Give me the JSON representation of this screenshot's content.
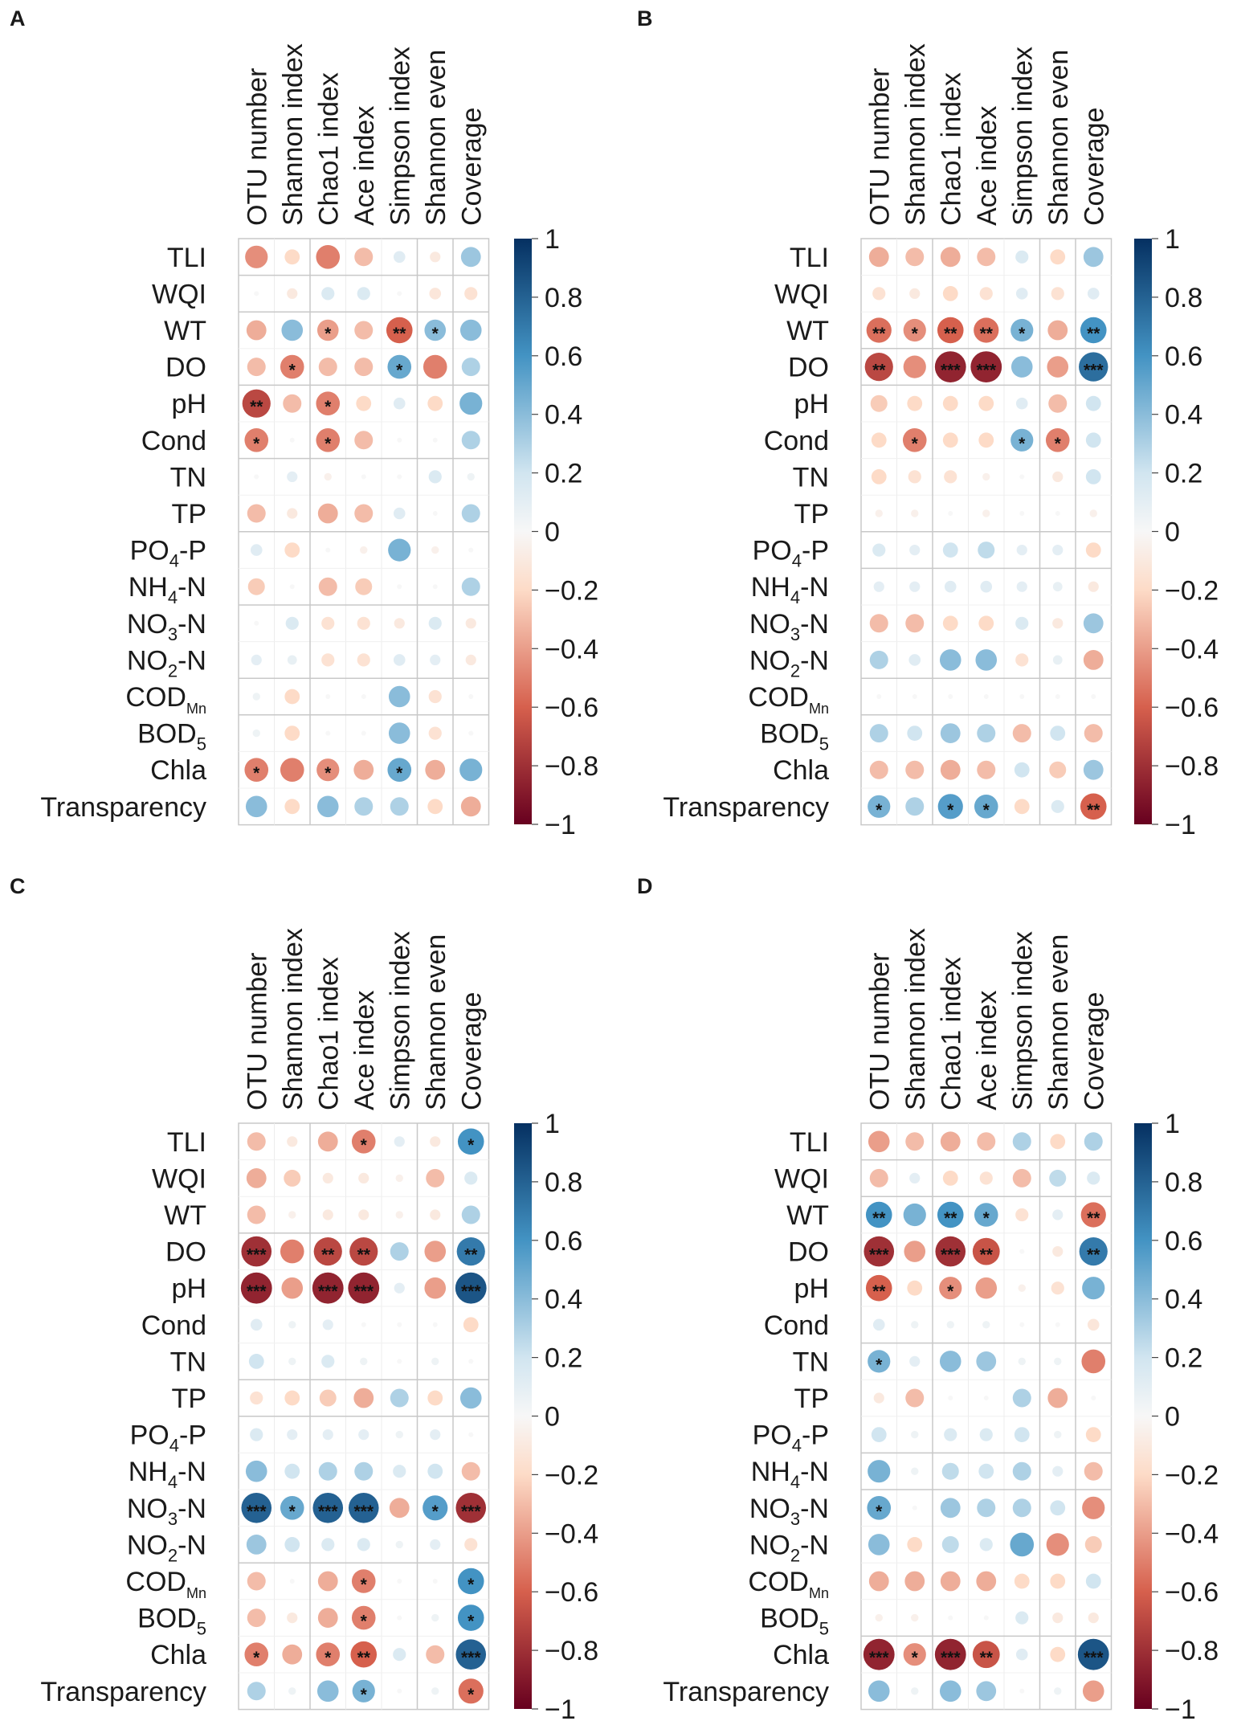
{
  "figure": {
    "columns": [
      "OTU number",
      "Shannon index",
      "Chao1 index",
      "Ace index",
      "Simpson index",
      "Shannon even",
      "Coverage"
    ],
    "rows": [
      "TLI",
      "WQI",
      "WT",
      "DO",
      "pH",
      "Cond",
      "TN",
      "TP",
      "PO4-P",
      "NH4-N",
      "NO3-N",
      "NO2-N",
      "CODMn",
      "BOD5",
      "Chla",
      "Transparency"
    ],
    "row_labels": [
      {
        "main": "TLI"
      },
      {
        "main": "WQI"
      },
      {
        "main": "WT"
      },
      {
        "main": "DO"
      },
      {
        "main": "pH"
      },
      {
        "main": "Cond"
      },
      {
        "main": "TN"
      },
      {
        "main": "TP"
      },
      {
        "main": "PO",
        "sub": "4",
        "rest": "-P"
      },
      {
        "main": "NH",
        "sub": "4",
        "rest": "-N"
      },
      {
        "main": "NO",
        "sub": "3",
        "rest": "-N"
      },
      {
        "main": "NO",
        "sub": "2",
        "rest": "-N"
      },
      {
        "main": "COD",
        "sub": "Mn",
        "rest": ""
      },
      {
        "main": "BOD",
        "sub": "5",
        "rest": ""
      },
      {
        "main": "Chla"
      },
      {
        "main": "Transparency"
      }
    ],
    "colorbar_ticks": [
      "1",
      "0.8",
      "0.6",
      "0.4",
      "0.2",
      "0",
      "−0.2",
      "−0.4",
      "−0.6",
      "−0.8",
      "−1"
    ],
    "colors": {
      "negative_end": "#67001f",
      "neg_mid": "#d6604d",
      "neg_light": "#fddbc7",
      "zero": "#f7f7f7",
      "pos_light": "#d1e5f0",
      "pos_mid": "#4393c3",
      "positive_end": "#053061",
      "grid": "#c8c8c8"
    }
  },
  "chart_data": [
    {
      "panel": "A",
      "type": "heatmap",
      "style": "correlation circles",
      "values": [
        [
          -0.45,
          -0.2,
          -0.5,
          -0.3,
          0.12,
          -0.1,
          0.35
        ],
        [
          0.0,
          -0.1,
          0.15,
          0.15,
          0.0,
          -0.12,
          -0.15
        ],
        [
          -0.35,
          0.4,
          -0.4,
          -0.3,
          -0.6,
          0.4,
          0.4
        ],
        [
          -0.3,
          -0.5,
          -0.3,
          -0.3,
          0.5,
          -0.5,
          0.3
        ],
        [
          -0.7,
          -0.3,
          -0.5,
          -0.2,
          0.12,
          -0.2,
          0.45
        ],
        [
          -0.5,
          0.0,
          -0.5,
          -0.3,
          0.0,
          0.0,
          0.3
        ],
        [
          0.0,
          0.1,
          -0.05,
          0.0,
          0.0,
          0.15,
          0.05
        ],
        [
          -0.3,
          -0.1,
          -0.35,
          -0.3,
          0.12,
          0.0,
          0.3
        ],
        [
          0.12,
          -0.2,
          0.0,
          -0.05,
          0.45,
          -0.05,
          0.0
        ],
        [
          -0.25,
          0.0,
          -0.3,
          -0.25,
          0.0,
          0.0,
          0.3
        ],
        [
          0.0,
          0.15,
          -0.15,
          -0.15,
          -0.1,
          0.15,
          -0.1
        ],
        [
          0.1,
          0.08,
          -0.15,
          -0.15,
          0.12,
          0.1,
          -0.1
        ],
        [
          0.05,
          -0.2,
          0.0,
          0.0,
          0.4,
          -0.15,
          0.0
        ],
        [
          0.05,
          -0.2,
          0.0,
          0.0,
          0.4,
          -0.15,
          0.0
        ],
        [
          -0.5,
          -0.5,
          -0.45,
          -0.35,
          0.5,
          -0.35,
          0.45
        ],
        [
          0.4,
          -0.2,
          0.4,
          0.3,
          0.3,
          -0.2,
          -0.35
        ]
      ],
      "stars": [
        [
          "",
          "",
          "",
          "",
          "",
          "",
          ""
        ],
        [
          "",
          "",
          "",
          "",
          "",
          "",
          ""
        ],
        [
          "",
          "",
          "*",
          "",
          "**",
          "*",
          ""
        ],
        [
          "",
          "*",
          "",
          "",
          "*",
          "",
          ""
        ],
        [
          "**",
          "",
          "*",
          "",
          "",
          "",
          ""
        ],
        [
          "*",
          "",
          "*",
          "",
          "",
          "",
          ""
        ],
        [
          "",
          "",
          "",
          "",
          "",
          "",
          ""
        ],
        [
          "",
          "",
          "",
          "",
          "",
          "",
          ""
        ],
        [
          "",
          "",
          "",
          "",
          "",
          "",
          ""
        ],
        [
          "",
          "",
          "",
          "",
          "",
          "",
          ""
        ],
        [
          "",
          "",
          "",
          "",
          "",
          "",
          ""
        ],
        [
          "",
          "",
          "",
          "",
          "",
          "",
          ""
        ],
        [
          "",
          "",
          "",
          "",
          "",
          "",
          ""
        ],
        [
          "",
          "",
          "",
          "",
          "",
          "",
          ""
        ],
        [
          "*",
          "",
          "*",
          "",
          "*",
          "",
          ""
        ],
        [
          "",
          "",
          "",
          "",
          "",
          "",
          ""
        ]
      ],
      "clusters": [
        1,
        2,
        4,
        6,
        8,
        10,
        12,
        13
      ],
      "col_clusters": [
        2,
        5,
        6
      ],
      "range": [
        -1,
        1
      ]
    },
    {
      "panel": "B",
      "type": "heatmap",
      "style": "correlation circles",
      "values": [
        [
          -0.35,
          -0.3,
          -0.35,
          -0.3,
          0.15,
          -0.2,
          0.35
        ],
        [
          -0.15,
          -0.1,
          -0.2,
          -0.15,
          0.12,
          -0.15,
          0.12
        ],
        [
          -0.55,
          -0.45,
          -0.6,
          -0.55,
          0.45,
          -0.35,
          0.6
        ],
        [
          -0.7,
          -0.45,
          -0.85,
          -0.85,
          0.4,
          -0.4,
          0.75
        ],
        [
          -0.25,
          -0.2,
          -0.2,
          -0.2,
          0.12,
          -0.3,
          0.2
        ],
        [
          -0.2,
          -0.5,
          -0.2,
          -0.2,
          0.45,
          -0.5,
          0.2
        ],
        [
          -0.2,
          -0.15,
          -0.15,
          -0.05,
          0.0,
          -0.1,
          0.2
        ],
        [
          -0.05,
          -0.05,
          0.0,
          -0.05,
          0.0,
          0.0,
          -0.05
        ],
        [
          0.15,
          0.1,
          0.2,
          0.25,
          0.1,
          0.1,
          -0.2
        ],
        [
          0.1,
          0.1,
          0.12,
          0.12,
          0.1,
          0.08,
          -0.1
        ],
        [
          -0.3,
          -0.3,
          -0.2,
          -0.2,
          0.15,
          -0.1,
          0.35
        ],
        [
          0.3,
          0.12,
          0.4,
          0.4,
          -0.15,
          0.08,
          -0.35
        ],
        [
          0.0,
          0.0,
          0.0,
          0.0,
          0.0,
          0.0,
          0.0
        ],
        [
          0.3,
          0.2,
          0.35,
          0.3,
          -0.3,
          0.2,
          -0.3
        ],
        [
          -0.3,
          -0.3,
          -0.35,
          -0.3,
          0.2,
          -0.25,
          0.35
        ],
        [
          0.45,
          0.3,
          0.55,
          0.5,
          -0.2,
          0.15,
          -0.6
        ]
      ],
      "stars": [
        [
          "",
          "",
          "",
          "",
          "",
          "",
          ""
        ],
        [
          "",
          "",
          "",
          "",
          "",
          "",
          ""
        ],
        [
          "**",
          "*",
          "**",
          "**",
          "*",
          "",
          "**"
        ],
        [
          "**",
          "",
          "***",
          "***",
          "",
          "",
          "***"
        ],
        [
          "",
          "",
          "",
          "",
          "",
          "",
          ""
        ],
        [
          "",
          "*",
          "",
          "",
          "*",
          "*",
          ""
        ],
        [
          "",
          "",
          "",
          "",
          "",
          "",
          ""
        ],
        [
          "",
          "",
          "",
          "",
          "",
          "",
          ""
        ],
        [
          "",
          "",
          "",
          "",
          "",
          "",
          ""
        ],
        [
          "",
          "",
          "",
          "",
          "",
          "",
          ""
        ],
        [
          "",
          "",
          "",
          "",
          "",
          "",
          ""
        ],
        [
          "",
          "",
          "",
          "",
          "",
          "",
          ""
        ],
        [
          "",
          "",
          "",
          "",
          "",
          "",
          ""
        ],
        [
          "",
          "",
          "",
          "",
          "",
          "",
          ""
        ],
        [
          "",
          "",
          "",
          "",
          "",
          "",
          ""
        ],
        [
          "*",
          "",
          "*",
          "*",
          "",
          "",
          "**"
        ]
      ],
      "clusters": [
        3,
        4,
        8,
        9,
        12,
        13
      ],
      "col_clusters": [
        2,
        5,
        6
      ],
      "range": [
        -1,
        1
      ]
    },
    {
      "panel": "C",
      "type": "heatmap",
      "style": "correlation circles",
      "values": [
        [
          -0.3,
          -0.1,
          -0.35,
          -0.5,
          0.1,
          -0.1,
          0.6
        ],
        [
          -0.35,
          -0.25,
          -0.1,
          -0.1,
          -0.05,
          -0.3,
          0.15
        ],
        [
          -0.3,
          -0.05,
          -0.1,
          -0.1,
          -0.05,
          -0.1,
          0.3
        ],
        [
          -0.8,
          -0.5,
          -0.7,
          -0.7,
          0.3,
          -0.4,
          0.7
        ],
        [
          -0.85,
          -0.4,
          -0.85,
          -0.85,
          0.1,
          -0.4,
          0.85
        ],
        [
          0.12,
          0.05,
          0.1,
          0.0,
          0.0,
          0.0,
          -0.2
        ],
        [
          0.2,
          0.05,
          0.15,
          0.05,
          0.0,
          0.05,
          0.0
        ],
        [
          -0.15,
          -0.2,
          -0.25,
          -0.35,
          0.3,
          -0.2,
          0.4
        ],
        [
          0.15,
          0.1,
          0.1,
          0.1,
          0.05,
          0.1,
          0.0
        ],
        [
          0.4,
          0.2,
          0.3,
          0.3,
          0.15,
          0.2,
          -0.3
        ],
        [
          0.8,
          0.5,
          0.8,
          0.8,
          -0.35,
          0.55,
          -0.8
        ],
        [
          0.35,
          0.2,
          0.15,
          0.15,
          0.05,
          0.1,
          -0.15
        ],
        [
          -0.3,
          0.0,
          -0.35,
          -0.5,
          0.0,
          0.0,
          0.6
        ],
        [
          -0.3,
          -0.1,
          -0.35,
          -0.5,
          0.0,
          0.05,
          0.6
        ],
        [
          -0.5,
          -0.35,
          -0.5,
          -0.6,
          0.15,
          -0.3,
          0.8
        ],
        [
          0.3,
          0.05,
          0.4,
          0.45,
          0.0,
          0.05,
          -0.55
        ]
      ],
      "stars": [
        [
          "",
          "",
          "",
          "*",
          "",
          "",
          "*"
        ],
        [
          "",
          "",
          "",
          "",
          "",
          "",
          ""
        ],
        [
          "",
          "",
          "",
          "",
          "",
          "",
          ""
        ],
        [
          "***",
          "",
          "**",
          "**",
          "",
          "",
          "**"
        ],
        [
          "***",
          "",
          "***",
          "***",
          "",
          "",
          "***"
        ],
        [
          "",
          "",
          "",
          "",
          "",
          "",
          ""
        ],
        [
          "",
          "",
          "",
          "",
          "",
          "",
          ""
        ],
        [
          "",
          "",
          "",
          "",
          "",
          "",
          ""
        ],
        [
          "",
          "",
          "",
          "",
          "",
          "",
          ""
        ],
        [
          "",
          "",
          "",
          "",
          "",
          "",
          ""
        ],
        [
          "***",
          "*",
          "***",
          "***",
          "",
          "*",
          "***"
        ],
        [
          "",
          "",
          "",
          "",
          "",
          "",
          ""
        ],
        [
          "",
          "",
          "",
          "*",
          "",
          "",
          "*"
        ],
        [
          "",
          "",
          "",
          "*",
          "",
          "",
          "*"
        ],
        [
          "*",
          "",
          "*",
          "**",
          "",
          "",
          "***"
        ],
        [
          "",
          "",
          "",
          "*",
          "",
          "",
          "*"
        ]
      ],
      "clusters": [
        3,
        7,
        8,
        12
      ],
      "col_clusters": [
        2,
        5,
        6
      ],
      "range": [
        -1,
        1
      ]
    },
    {
      "panel": "D",
      "type": "heatmap",
      "style": "correlation circles",
      "values": [
        [
          -0.4,
          -0.3,
          -0.35,
          -0.3,
          0.3,
          -0.2,
          0.3
        ],
        [
          -0.3,
          0.1,
          -0.2,
          -0.15,
          -0.3,
          0.25,
          0.15
        ],
        [
          0.6,
          0.45,
          0.6,
          0.5,
          -0.15,
          0.1,
          -0.55
        ],
        [
          -0.8,
          -0.4,
          -0.8,
          -0.65,
          0.0,
          -0.1,
          0.7
        ],
        [
          -0.6,
          -0.2,
          -0.45,
          -0.4,
          -0.05,
          -0.15,
          0.45
        ],
        [
          0.12,
          0.05,
          0.05,
          0.05,
          0.0,
          0.0,
          -0.12
        ],
        [
          0.45,
          0.1,
          0.4,
          0.35,
          0.05,
          0.05,
          -0.5
        ],
        [
          -0.1,
          -0.3,
          0.0,
          0.0,
          0.3,
          -0.35,
          0.0
        ],
        [
          0.2,
          0.05,
          0.15,
          0.15,
          0.2,
          0.05,
          -0.2
        ],
        [
          0.45,
          0.05,
          0.25,
          0.2,
          0.3,
          0.1,
          -0.3
        ],
        [
          0.5,
          0.0,
          0.35,
          0.3,
          0.3,
          0.2,
          -0.45
        ],
        [
          0.4,
          -0.2,
          0.25,
          0.15,
          0.5,
          -0.45,
          -0.25
        ],
        [
          -0.35,
          -0.35,
          -0.35,
          -0.35,
          -0.2,
          -0.2,
          0.2
        ],
        [
          -0.05,
          -0.05,
          0.0,
          0.0,
          0.15,
          -0.1,
          -0.1
        ],
        [
          -0.85,
          -0.45,
          -0.85,
          -0.65,
          0.12,
          -0.2,
          0.85
        ],
        [
          0.4,
          0.05,
          0.4,
          0.35,
          0.0,
          0.05,
          -0.4
        ]
      ],
      "stars": [
        [
          "",
          "",
          "",
          "",
          "",
          "",
          ""
        ],
        [
          "",
          "",
          "",
          "",
          "",
          "",
          ""
        ],
        [
          "**",
          "",
          "**",
          "*",
          "",
          "",
          "**"
        ],
        [
          "***",
          "",
          "***",
          "**",
          "",
          "",
          "**"
        ],
        [
          "**",
          "",
          "*",
          "",
          "",
          "",
          ""
        ],
        [
          "",
          "",
          "",
          "",
          "",
          "",
          ""
        ],
        [
          "*",
          "",
          "",
          "",
          "",
          "",
          ""
        ],
        [
          "",
          "",
          "",
          "",
          "",
          "",
          ""
        ],
        [
          "",
          "",
          "",
          "",
          "",
          "",
          ""
        ],
        [
          "",
          "",
          "",
          "",
          "",
          "",
          ""
        ],
        [
          "*",
          "",
          "",
          "",
          "",
          "",
          ""
        ],
        [
          "",
          "",
          "",
          "",
          "",
          "",
          ""
        ],
        [
          "",
          "",
          "",
          "",
          "",
          "",
          ""
        ],
        [
          "",
          "",
          "",
          "",
          "",
          "",
          ""
        ],
        [
          "***",
          "*",
          "***",
          "**",
          "",
          "",
          "***"
        ],
        [
          "",
          "",
          "",
          "",
          "",
          "",
          ""
        ]
      ],
      "clusters": [
        1,
        2,
        6,
        9,
        10,
        14
      ],
      "col_clusters": [
        2,
        5,
        6
      ],
      "range": [
        -1,
        1
      ]
    }
  ]
}
